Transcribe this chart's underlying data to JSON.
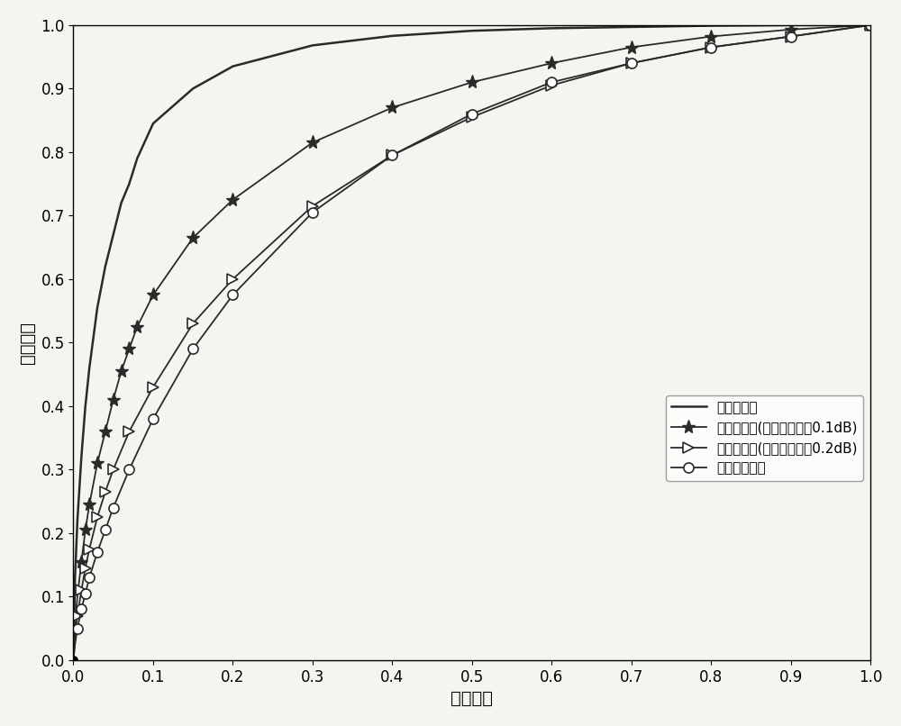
{
  "xlabel": "虚警概率",
  "ylabel": "检测概率",
  "xlim": [
    0,
    1
  ],
  "ylim": [
    0,
    1
  ],
  "xticks": [
    0,
    0.1,
    0.2,
    0.3,
    0.4,
    0.5,
    0.6,
    0.7,
    0.8,
    0.9,
    1.0
  ],
  "yticks": [
    0,
    0.1,
    0.2,
    0.3,
    0.4,
    0.5,
    0.6,
    0.7,
    0.8,
    0.9,
    1.0
  ],
  "legend_labels": [
    "本发明方法",
    "能量检测法(噪声不确定度0.1dB)",
    "能量检测法(噪声不确定度0.2dB)",
    "特征值检测法"
  ],
  "line_color": "#2a2a2a",
  "background_color": "#f5f5f0",
  "curve1_x": [
    0,
    0.002,
    0.005,
    0.01,
    0.015,
    0.02,
    0.03,
    0.04,
    0.05,
    0.06,
    0.07,
    0.08,
    0.1,
    0.15,
    0.2,
    0.3,
    0.4,
    0.5,
    0.6,
    0.7,
    0.8,
    0.9,
    1.0
  ],
  "curve1_y": [
    0,
    0.13,
    0.22,
    0.32,
    0.4,
    0.46,
    0.555,
    0.62,
    0.67,
    0.72,
    0.75,
    0.79,
    0.845,
    0.9,
    0.935,
    0.968,
    0.983,
    0.991,
    0.995,
    0.997,
    0.999,
    1.0,
    1.0
  ],
  "curve2_x": [
    0,
    0.002,
    0.005,
    0.01,
    0.015,
    0.02,
    0.03,
    0.04,
    0.05,
    0.06,
    0.07,
    0.08,
    0.1,
    0.15,
    0.2,
    0.3,
    0.4,
    0.5,
    0.6,
    0.7,
    0.8,
    0.9,
    1.0
  ],
  "curve2_y": [
    0,
    0.06,
    0.1,
    0.155,
    0.205,
    0.245,
    0.31,
    0.36,
    0.41,
    0.455,
    0.49,
    0.525,
    0.575,
    0.665,
    0.725,
    0.815,
    0.87,
    0.91,
    0.94,
    0.965,
    0.982,
    0.993,
    1.0
  ],
  "curve3_x": [
    0,
    0.002,
    0.005,
    0.01,
    0.015,
    0.02,
    0.03,
    0.04,
    0.05,
    0.07,
    0.1,
    0.15,
    0.2,
    0.3,
    0.4,
    0.5,
    0.6,
    0.7,
    0.8,
    0.9,
    1.0
  ],
  "curve3_y": [
    0,
    0.04,
    0.07,
    0.11,
    0.145,
    0.175,
    0.225,
    0.265,
    0.3,
    0.36,
    0.43,
    0.53,
    0.6,
    0.715,
    0.795,
    0.855,
    0.905,
    0.94,
    0.965,
    0.982,
    1.0
  ],
  "curve4_x": [
    0,
    0.002,
    0.005,
    0.01,
    0.015,
    0.02,
    0.03,
    0.04,
    0.05,
    0.07,
    0.1,
    0.15,
    0.2,
    0.3,
    0.4,
    0.5,
    0.6,
    0.7,
    0.8,
    0.9,
    1.0
  ],
  "curve4_y": [
    0,
    0.025,
    0.05,
    0.08,
    0.105,
    0.13,
    0.17,
    0.205,
    0.24,
    0.3,
    0.38,
    0.49,
    0.575,
    0.705,
    0.795,
    0.86,
    0.91,
    0.94,
    0.965,
    0.982,
    1.0
  ],
  "curve2_markers_x": [
    0.01,
    0.02,
    0.03,
    0.04,
    0.05,
    0.06,
    0.07,
    0.08,
    0.1,
    0.2,
    0.3,
    0.4,
    0.5,
    0.6,
    0.7,
    0.8,
    0.9,
    1.0
  ],
  "curve2_markers_y": [
    0.155,
    0.245,
    0.31,
    0.36,
    0.41,
    0.455,
    0.49,
    0.525,
    0.575,
    0.725,
    0.815,
    0.87,
    0.91,
    0.94,
    0.965,
    0.982,
    0.993,
    1.0
  ],
  "curve3_markers_x": [
    0.02,
    0.03,
    0.05,
    0.07,
    0.1,
    0.2,
    0.3,
    0.4,
    0.5,
    0.6,
    0.7,
    0.8,
    0.9,
    1.0
  ],
  "curve3_markers_y": [
    0.175,
    0.225,
    0.3,
    0.36,
    0.43,
    0.6,
    0.715,
    0.795,
    0.855,
    0.905,
    0.94,
    0.965,
    0.982,
    1.0
  ],
  "curve4_markers_x": [
    0.02,
    0.03,
    0.05,
    0.07,
    0.1,
    0.2,
    0.3,
    0.4,
    0.5,
    0.6,
    0.7,
    0.8,
    0.9,
    1.0
  ],
  "curve4_markers_y": [
    0.13,
    0.17,
    0.24,
    0.3,
    0.38,
    0.575,
    0.705,
    0.795,
    0.86,
    0.91,
    0.94,
    0.965,
    0.982,
    1.0
  ],
  "marker_size": 8,
  "line_width": 1.3,
  "tick_fontsize": 12,
  "label_fontsize": 14,
  "legend_fontsize": 11
}
